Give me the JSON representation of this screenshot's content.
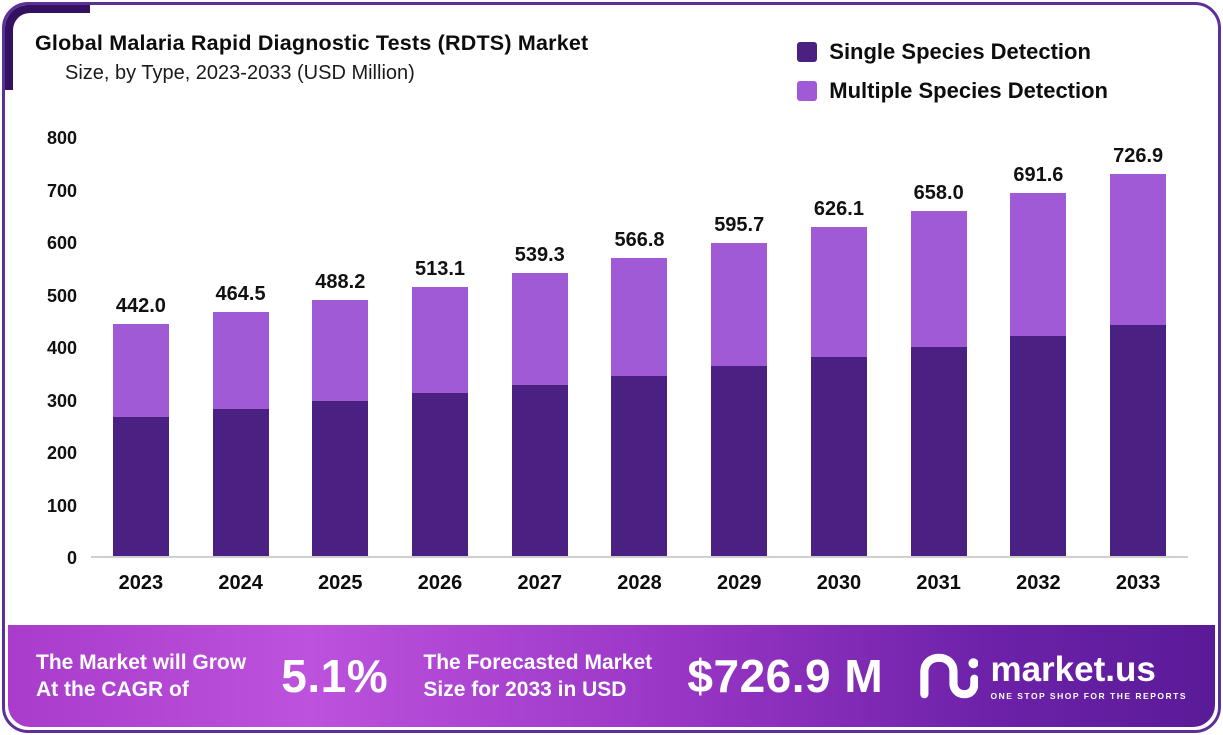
{
  "header": {
    "title_line1": "Global Malaria Rapid Diagnostic Tests (RDTS) Market",
    "title_line2": "Size, by Type, 2023-2033 (USD Million)"
  },
  "legend": [
    {
      "label": "Single Species Detection",
      "color": "#4a2183"
    },
    {
      "label": "Multiple Species Detection",
      "color": "#a05ad6"
    }
  ],
  "chart_data": {
    "type": "bar",
    "stacked": true,
    "title": "Global Malaria Rapid Diagnostic Tests (RDTS) Market Size, by Type, 2023-2033 (USD Million)",
    "categories": [
      "2023",
      "2024",
      "2025",
      "2026",
      "2027",
      "2028",
      "2029",
      "2030",
      "2031",
      "2032",
      "2033"
    ],
    "series": [
      {
        "name": "Single Species Detection",
        "color": "#4a2183",
        "values": [
          265.0,
          280.0,
          295.0,
          310.0,
          326.0,
          343.0,
          361.0,
          379.0,
          399.0,
          419.0,
          440.0
        ]
      },
      {
        "name": "Multiple Species Detection",
        "color": "#a05ad6",
        "values": [
          177.0,
          184.5,
          193.2,
          203.1,
          213.3,
          223.8,
          234.7,
          247.1,
          259.0,
          272.6,
          286.9
        ]
      }
    ],
    "totals": [
      442.0,
      464.5,
      488.2,
      513.1,
      539.3,
      566.8,
      595.7,
      626.1,
      658.0,
      691.6,
      726.9
    ],
    "xlabel": "",
    "ylabel": "",
    "ylim": [
      0,
      800
    ],
    "yticks": [
      0,
      100,
      200,
      300,
      400,
      500,
      600,
      700,
      800
    ],
    "grid": false,
    "legend_position": "top-right"
  },
  "footer": {
    "cagr_line1": "The Market will Grow",
    "cagr_line2": "At the CAGR of",
    "cagr_value": "5.1%",
    "forecast_line1": "The Forecasted Market",
    "forecast_line2": "Size for 2033 in USD",
    "forecast_value": "$726.9 M",
    "brand": "market.us",
    "brand_tagline": "ONE STOP SHOP FOR THE REPORTS"
  }
}
